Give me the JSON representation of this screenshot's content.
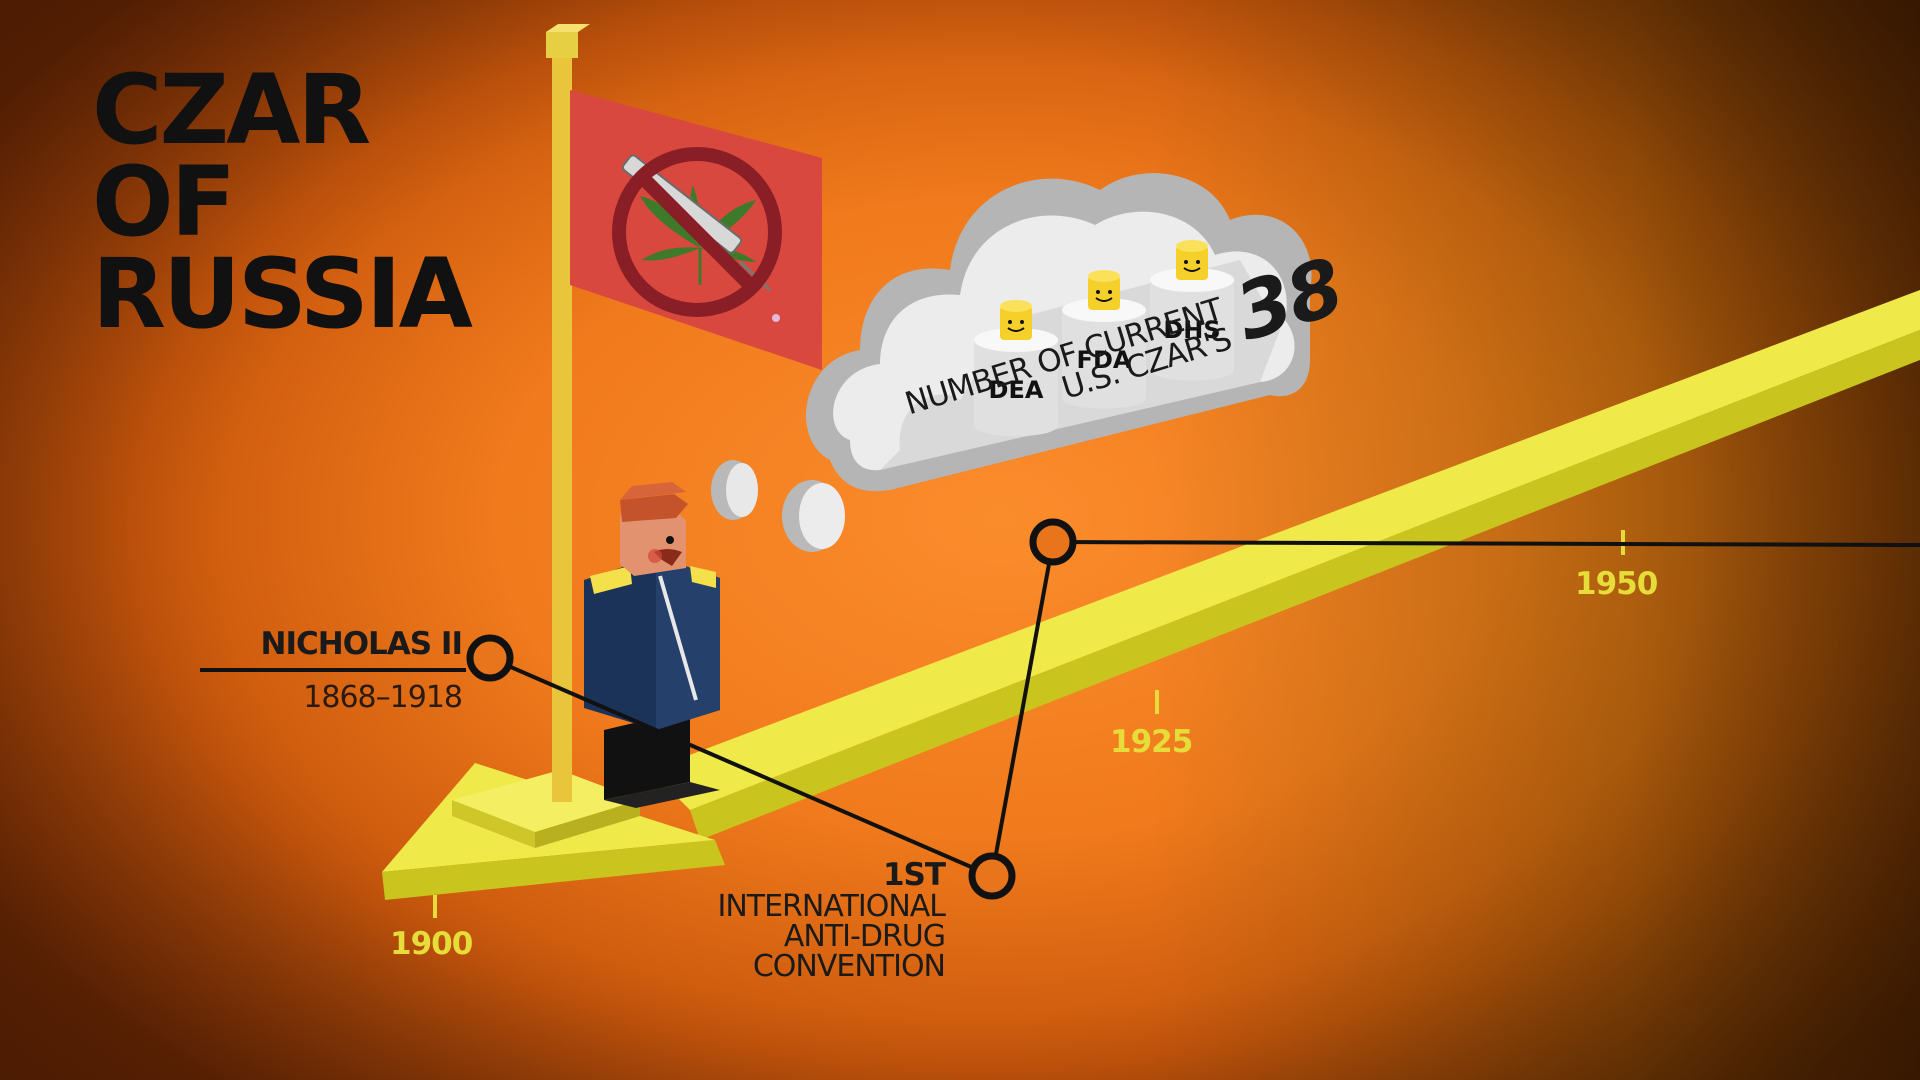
{
  "title": {
    "line1": "CZAR",
    "line2": "OF",
    "line3": "RUSSIA"
  },
  "person": {
    "name": "NICHOLAS II",
    "years": "1868–1918"
  },
  "event": {
    "ordinal": "1ST",
    "line1": "INTERNATIONAL",
    "line2": "ANTI-DRUG",
    "line3": "CONVENTION"
  },
  "stat": {
    "line1": "NUMBER OF CURRENT",
    "line2": "U.S. CZAR'S",
    "value": "38"
  },
  "agencies": [
    "DEA",
    "FDA",
    "DHS"
  ],
  "timeline": {
    "years": [
      "1900",
      "1925",
      "1950"
    ]
  },
  "colors": {
    "background": "#f07a1c",
    "timeline": "#e6e23a",
    "flag": "#d9483f",
    "text": "#111111"
  }
}
